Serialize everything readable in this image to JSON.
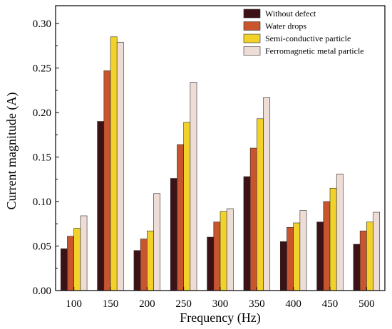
{
  "chart_data": {
    "type": "bar",
    "categories": [
      "100",
      "150",
      "200",
      "250",
      "300",
      "350",
      "400",
      "450",
      "500"
    ],
    "series": [
      {
        "name": "Without defect",
        "color": "#3d1216",
        "values": [
          0.047,
          0.19,
          0.045,
          0.126,
          0.06,
          0.128,
          0.055,
          0.077,
          0.052
        ]
      },
      {
        "name": "Water drops",
        "color": "#c8552e",
        "values": [
          0.061,
          0.247,
          0.058,
          0.164,
          0.077,
          0.16,
          0.071,
          0.1,
          0.067
        ]
      },
      {
        "name": "Semi-conductive particle",
        "color": "#f2d22a",
        "values": [
          0.07,
          0.285,
          0.067,
          0.189,
          0.089,
          0.193,
          0.076,
          0.115,
          0.077
        ]
      },
      {
        "name": "Ferromagnetic metal particle",
        "color": "#eeddd6",
        "values": [
          0.084,
          0.279,
          0.109,
          0.234,
          0.092,
          0.217,
          0.09,
          0.131,
          0.088
        ]
      }
    ],
    "title": "",
    "xlabel": "Frequency (Hz)",
    "ylabel": "Current magnitude (A)",
    "ylim": [
      0.0,
      0.32
    ],
    "yticks": [
      "0.00",
      "0.05",
      "0.10",
      "0.15",
      "0.20",
      "0.25",
      "0.30"
    ],
    "grid": false,
    "legend_position": "top-right"
  }
}
